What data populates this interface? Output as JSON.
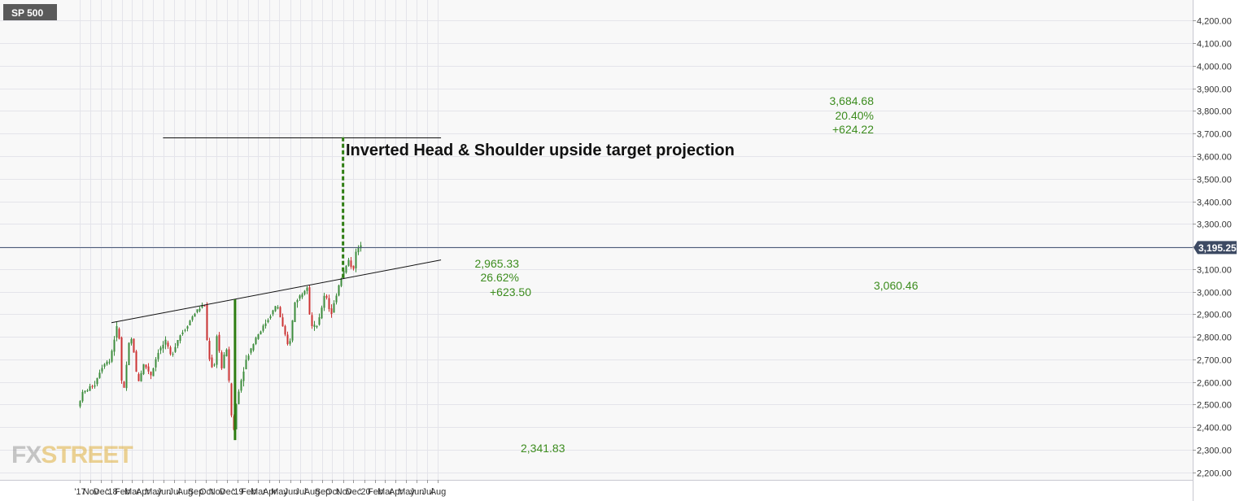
{
  "chart_data": {
    "type": "candlestick",
    "ticker": "SP 500",
    "y_axis": {
      "position": "right",
      "ylim": [
        2180,
        4260
      ],
      "ticks": [
        "2,200.00",
        "2,300.00",
        "2,400.00",
        "2,500.00",
        "2,600.00",
        "2,700.00",
        "2,800.00",
        "2,900.00",
        "3,000.00",
        "3,100.00",
        "3,200.00",
        "3,300.00",
        "3,400.00",
        "3,500.00",
        "3,600.00",
        "3,700.00",
        "3,800.00",
        "3,900.00",
        "4,000.00",
        "4,100.00",
        "4,200.00"
      ],
      "tick_values": [
        2200,
        2300,
        2400,
        2500,
        2600,
        2700,
        2800,
        2900,
        3000,
        3100,
        3200,
        3300,
        3400,
        3500,
        3600,
        3700,
        3800,
        3900,
        4000,
        4100,
        4200
      ]
    },
    "x_axis": {
      "ticks": [
        "'17",
        "Nov",
        "Dec",
        "'18",
        "Feb",
        "Mar",
        "Apr",
        "May",
        "Jun",
        "Jul",
        "Aug",
        "Sep",
        "Oct",
        "Nov",
        "Dec",
        "'19",
        "Feb",
        "Mar",
        "Apr",
        "May",
        "Jun",
        "Jul",
        "Aug",
        "Sep",
        "Oct",
        "Nov",
        "Dec",
        "'20",
        "Feb",
        "Mar",
        "Apr",
        "May",
        "Jun",
        "Jul",
        "Aug"
      ],
      "tick_months": [
        "2017-10",
        "2017-11",
        "2017-12",
        "2018-01",
        "2018-02",
        "2018-03",
        "2018-04",
        "2018-05",
        "2018-06",
        "2018-07",
        "2018-08",
        "2018-09",
        "2018-10",
        "2018-11",
        "2018-12",
        "2019-01",
        "2019-02",
        "2019-03",
        "2019-04",
        "2019-05",
        "2019-06",
        "2019-07",
        "2019-08",
        "2019-09",
        "2019-10",
        "2019-11",
        "2019-12",
        "2020-01",
        "2020-02",
        "2020-03",
        "2020-04",
        "2020-05",
        "2020-06",
        "2020-07",
        "2020-08"
      ]
    },
    "price_path": [
      [
        "2017-10-01",
        2490
      ],
      [
        "2017-10-15",
        2550
      ],
      [
        "2017-11-01",
        2570
      ],
      [
        "2017-11-20",
        2590
      ],
      [
        "2017-12-01",
        2640
      ],
      [
        "2017-12-20",
        2690
      ],
      [
        "2018-01-01",
        2690
      ],
      [
        "2018-01-26",
        2872
      ],
      [
        "2018-02-05",
        2600
      ],
      [
        "2018-02-09",
        2532
      ],
      [
        "2018-02-27",
        2780
      ],
      [
        "2018-03-08",
        2790
      ],
      [
        "2018-03-23",
        2590
      ],
      [
        "2018-04-10",
        2680
      ],
      [
        "2018-05-01",
        2630
      ],
      [
        "2018-05-20",
        2730
      ],
      [
        "2018-06-12",
        2780
      ],
      [
        "2018-06-28",
        2710
      ],
      [
        "2018-07-20",
        2800
      ],
      [
        "2018-08-10",
        2840
      ],
      [
        "2018-09-01",
        2900
      ],
      [
        "2018-09-20",
        2930
      ],
      [
        "2018-10-03",
        2940
      ],
      [
        "2018-10-12",
        2730
      ],
      [
        "2018-10-29",
        2640
      ],
      [
        "2018-11-07",
        2810
      ],
      [
        "2018-11-23",
        2640
      ],
      [
        "2018-12-03",
        2790
      ],
      [
        "2018-12-24",
        2351
      ],
      [
        "2019-01-04",
        2530
      ],
      [
        "2019-01-31",
        2700
      ],
      [
        "2019-03-01",
        2800
      ],
      [
        "2019-04-01",
        2870
      ],
      [
        "2019-04-30",
        2945
      ],
      [
        "2019-05-15",
        2850
      ],
      [
        "2019-06-03",
        2744
      ],
      [
        "2019-06-20",
        2950
      ],
      [
        "2019-07-26",
        3025
      ],
      [
        "2019-08-05",
        2845
      ],
      [
        "2019-08-26",
        2850
      ],
      [
        "2019-09-16",
        3005
      ],
      [
        "2019-10-02",
        2890
      ],
      [
        "2019-10-28",
        3045
      ],
      [
        "2019-11-07",
        3085
      ],
      [
        "2019-11-27",
        3150
      ],
      [
        "2019-12-03",
        3070
      ],
      [
        "2019-12-13",
        3170
      ],
      [
        "2019-12-23",
        3200
      ]
    ],
    "current_price": 3195.25,
    "current_price_label": "3,195.25",
    "trendline": {
      "type": "neckline",
      "start": [
        "2018-01-01",
        2862
      ],
      "end": [
        "2020-08-10",
        3140
      ]
    },
    "target_line": {
      "value": 3684.68,
      "start_date": "2018-05-30",
      "end_date": "2020-08-10",
      "label": "Inverted Head & Shoulder upside target projection"
    },
    "measure_head": {
      "date": "2018-12-24",
      "from": 2341.83,
      "to": 2965.33,
      "lines": [
        "2,965.33",
        "26.62%",
        "+623.50"
      ],
      "low_label": "2,341.83"
    },
    "measure_target": {
      "date": "2019-11-01",
      "from": 3060.46,
      "to": 3684.68,
      "lines": [
        "3,684.68",
        "20.40%",
        "+624.22"
      ],
      "base_label": "3,060.46"
    },
    "colors": {
      "up": "#3c8c3c",
      "down": "#cc3333",
      "annotation": "#3c8c1e",
      "measure_line": "#2e7d12",
      "price_line": "#4a5a78",
      "badge": "#3d4a63",
      "grid": "#e4e4ea",
      "background": "#f8f8f8",
      "ticker_bg": "#5a5a5a"
    },
    "grid": true
  },
  "watermark": {
    "logo_text_1": "FX",
    "logo_text_2": "STREET"
  }
}
